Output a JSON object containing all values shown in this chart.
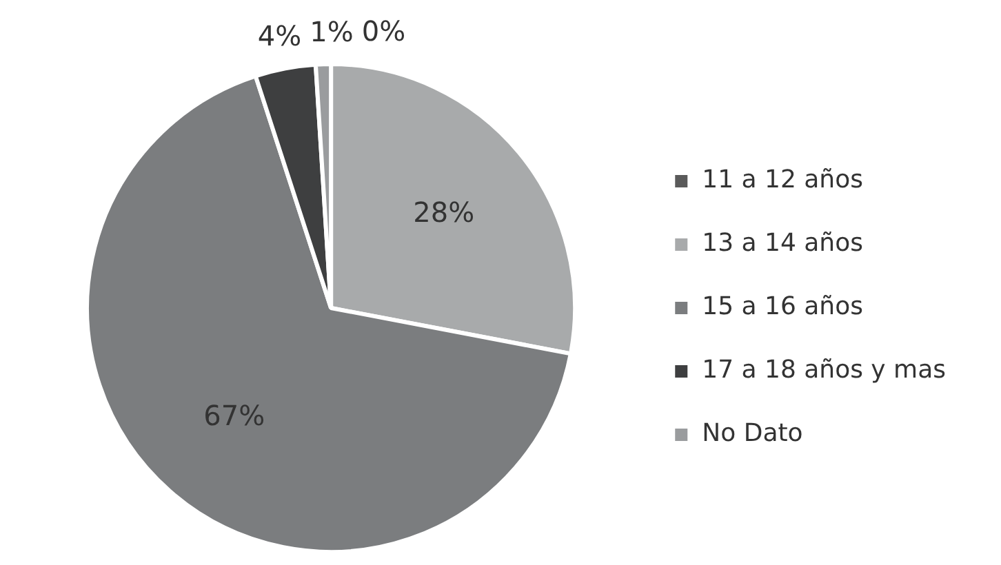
{
  "chart_data": {
    "type": "pie",
    "categories": [
      "11 a 12 años",
      "13 a 14 años",
      "15 a 16 años",
      "17 a 18 años y mas",
      "No Dato"
    ],
    "values": [
      0,
      28,
      67,
      4,
      1
    ],
    "colors": [
      "#5a5a5a",
      "#a8aaab",
      "#7b7d7f",
      "#3e3f40",
      "#9a9c9e"
    ],
    "value_labels": [
      "0%",
      "28%",
      "67%",
      "4%",
      "1%"
    ],
    "legend": "right"
  }
}
